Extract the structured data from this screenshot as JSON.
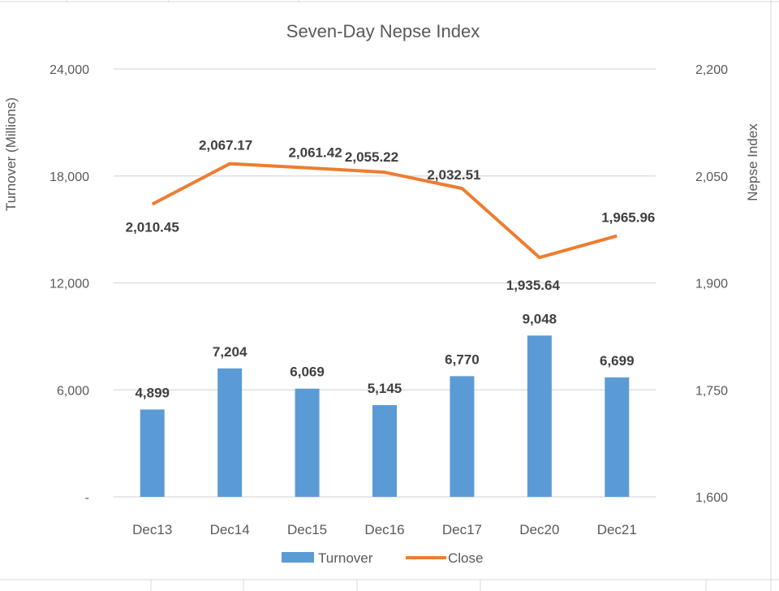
{
  "chart_data": {
    "type": "bar+line",
    "title": "Seven-Day Nepse Index",
    "categories": [
      "Dec13",
      "Dec14",
      "Dec15",
      "Dec16",
      "Dec17",
      "Dec20",
      "Dec21"
    ],
    "series": [
      {
        "name": "Turnover",
        "type": "bar",
        "axis": "left",
        "color": "#5B9BD5",
        "values": [
          4899,
          7204,
          6069,
          5145,
          6770,
          9048,
          6699
        ],
        "labels": [
          "4,899",
          "7,204",
          "6,069",
          "5,145",
          "6,770",
          "9,048",
          "6,699"
        ]
      },
      {
        "name": "Close",
        "type": "line",
        "axis": "right",
        "color": "#ED7D31",
        "values": [
          2010.45,
          2067.17,
          2061.42,
          2055.22,
          2032.51,
          1935.64,
          1965.96
        ],
        "labels": [
          "2,010.45",
          "2,067.17",
          "2,061.42",
          "2,055.22",
          "2,032.51",
          "1,935.64",
          "1,965.96"
        ]
      }
    ],
    "y_left": {
      "label": "Turnover (Millions)",
      "range": [
        0,
        24000
      ],
      "ticks": [
        "-",
        "6,000",
        "12,000",
        "18,000",
        "24,000"
      ]
    },
    "y_right": {
      "label": "Nepse Index",
      "range": [
        1600,
        2200
      ],
      "ticks": [
        "1,600",
        "1,750",
        "1,900",
        "2,050",
        "2,200"
      ]
    },
    "grid": true,
    "legend": {
      "position": "bottom",
      "entries": [
        "Turnover",
        "Close"
      ]
    }
  }
}
